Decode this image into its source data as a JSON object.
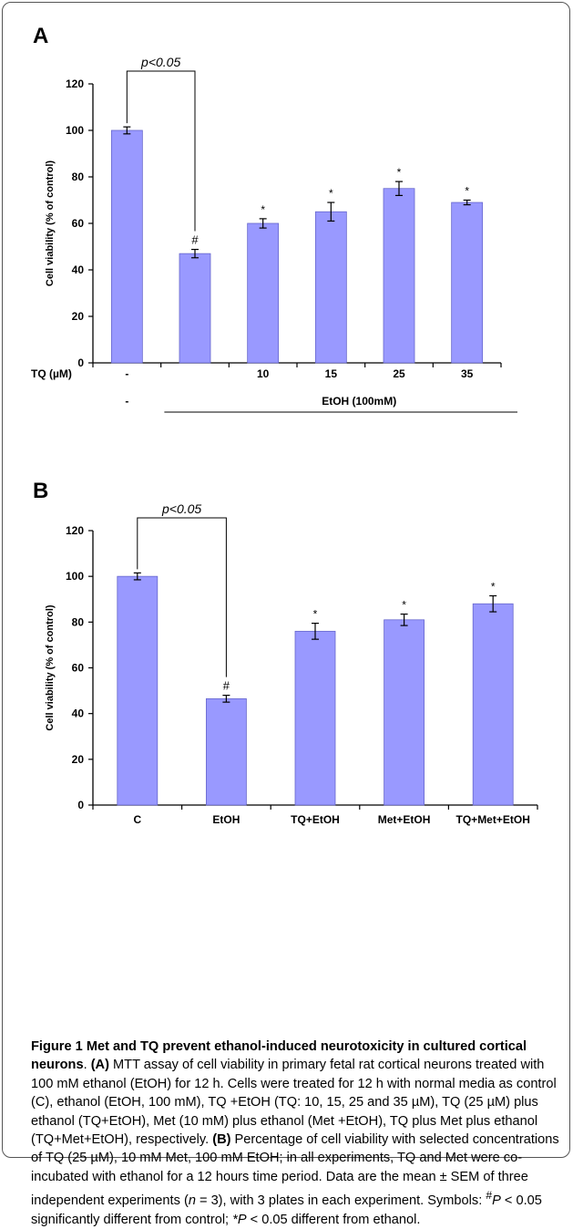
{
  "panels": [
    {
      "letter": "A",
      "chart_data": {
        "type": "bar",
        "categories": [
          "-",
          "",
          "10",
          "15",
          "25",
          "35"
        ],
        "values": [
          100,
          47,
          60,
          65,
          75,
          69
        ],
        "errors": [
          1.5,
          1.8,
          2.0,
          4.0,
          3.0,
          1.0
        ],
        "markers": [
          "",
          "#",
          "*",
          "*",
          "*",
          "*"
        ],
        "ylabel": "Cell viability (% of control)",
        "ylim": [
          0,
          120
        ],
        "yticks": [
          0,
          20,
          40,
          60,
          80,
          100,
          120
        ],
        "x_row_label": "TQ (µM)",
        "second_row_first": "-",
        "group_label": "EtOH (100mM)",
        "annotation": "p<0.05",
        "bar_color": "#9999ff"
      }
    },
    {
      "letter": "B",
      "chart_data": {
        "type": "bar",
        "categories": [
          "C",
          "EtOH",
          "TQ+EtOH",
          "Met+EtOH",
          "TQ+Met+EtOH"
        ],
        "values": [
          100,
          46.5,
          76,
          81,
          88
        ],
        "errors": [
          1.5,
          1.5,
          3.5,
          2.5,
          3.5
        ],
        "markers": [
          "",
          "#",
          "*",
          "*",
          "*"
        ],
        "ylabel": "Cell viability (% of control)",
        "ylim": [
          0,
          120
        ],
        "yticks": [
          0,
          20,
          40,
          60,
          80,
          100,
          120
        ],
        "annotation": "p<0.05",
        "bar_color": "#9999ff"
      }
    }
  ],
  "caption": {
    "title": "Figure 1 Met and TQ prevent ethanol-induced neurotoxicity in cultured cortical neurons",
    "title_end": ". ",
    "label_a": "(A)",
    "text_a": " MTT assay of cell viability in primary fetal rat cortical neurons treated with 100 mM ethanol (EtOH) for 12 h. Cells were treated for 12 h with normal media as control (C), ethanol (EtOH, 100 mM), TQ +EtOH (TQ: 10, 15, 25 and 35 µM), TQ (25 µM) plus ethanol (TQ+EtOH), Met (10 mM) plus ethanol (Met +EtOH), TQ plus Met plus ethanol (TQ+Met+EtOH), respectively. ",
    "label_b": "(B)",
    "text_b": " Percentage of cell viability with selected concentrations of TQ (25 µM), 10 mM Met, 100 mM EtOH; in all experiments, TQ and Met were co-incubated with ethanol for a 12 hours time period. Data are the mean ± SEM of three independent experiments (",
    "n_var": "n",
    "n_text": " = 3), with 3 plates in each experiment. Symbols: ",
    "sym1": "#",
    "p_var1": "P",
    "text_sym1": " < 0.05 significantly different from control; ",
    "sym2": "*",
    "p_var2": "P",
    "text_sym2": " < 0.05 different from ethanol."
  }
}
